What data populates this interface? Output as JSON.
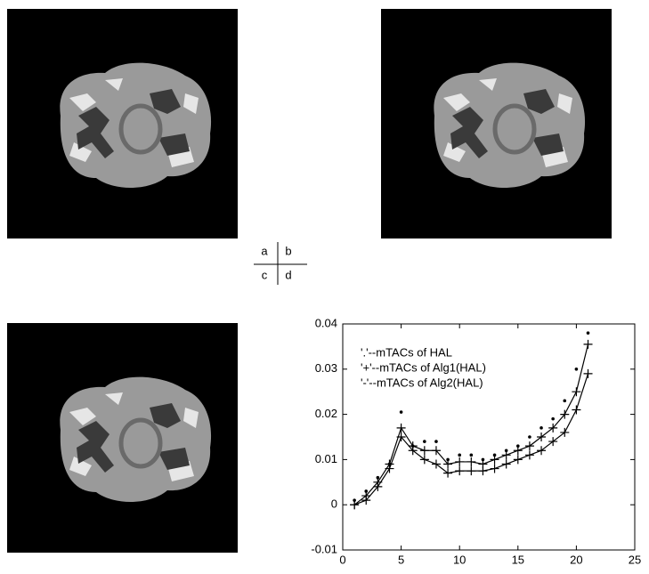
{
  "panel_labels": [
    "a",
    "b",
    "c",
    "d"
  ],
  "chart_data": {
    "type": "line",
    "x": [
      1,
      2,
      3,
      4,
      5,
      6,
      7,
      8,
      9,
      10,
      11,
      12,
      13,
      14,
      15,
      16,
      17,
      18,
      19,
      20,
      21
    ],
    "series": [
      {
        "name": "'.'--mTACs of HAL",
        "color": "#000000",
        "marker": ".",
        "line": false,
        "values": [
          0.001,
          0.003,
          0.006,
          0.009,
          0.0205,
          0.013,
          0.014,
          0.014,
          0.01,
          0.011,
          0.011,
          0.01,
          0.011,
          0.012,
          0.013,
          0.015,
          0.017,
          0.019,
          0.023,
          0.03,
          0.038
        ]
      },
      {
        "name": "'+'--mTACs of Alg1(HAL)",
        "color": "#000000",
        "marker": "+",
        "line": true,
        "values": [
          0.0,
          0.002,
          0.005,
          0.009,
          0.017,
          0.013,
          0.012,
          0.012,
          0.009,
          0.0095,
          0.0095,
          0.009,
          0.01,
          0.011,
          0.012,
          0.013,
          0.015,
          0.017,
          0.02,
          0.025,
          0.0355
        ]
      },
      {
        "name": "'-'--mTACs of Alg2(HAL)",
        "color": "#000000",
        "marker": "+",
        "line": true,
        "values": [
          0.0,
          0.001,
          0.004,
          0.008,
          0.015,
          0.012,
          0.01,
          0.009,
          0.007,
          0.0075,
          0.0075,
          0.0075,
          0.008,
          0.009,
          0.01,
          0.011,
          0.012,
          0.014,
          0.016,
          0.021,
          0.029
        ]
      }
    ],
    "xlim": [
      0,
      25
    ],
    "xticks": [
      0,
      5,
      10,
      15,
      20,
      25
    ],
    "ylim": [
      -0.01,
      0.04
    ],
    "yticks": [
      -0.01,
      0,
      0.01,
      0.02,
      0.03,
      0.04
    ],
    "legend": "upper-left",
    "grid": false
  }
}
